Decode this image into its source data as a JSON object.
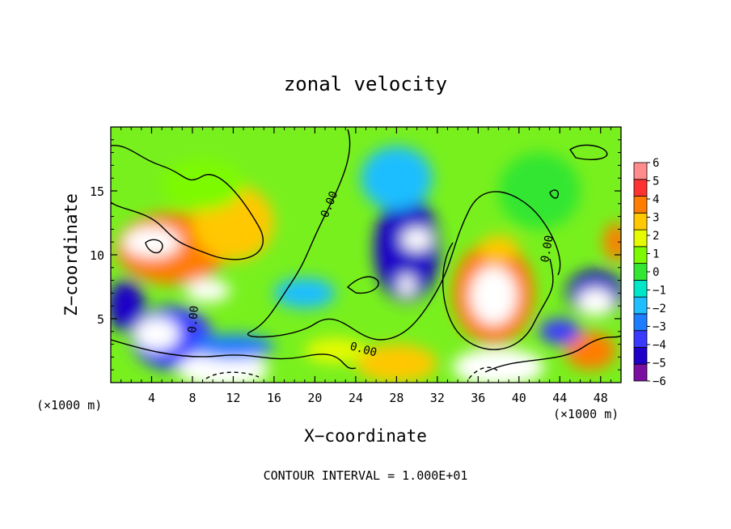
{
  "chart_data": {
    "type": "heatmap",
    "title": "zonal velocity",
    "xlabel": "X−coordinate",
    "ylabel": "Z−coordinate",
    "x_unit_left": "(×1000 m)",
    "x_unit_right": "(×1000 m)",
    "footer": "CONTOUR INTERVAL = 1.000E+01",
    "xlim": [
      0,
      50
    ],
    "ylim": [
      0,
      20
    ],
    "x_ticks": [
      4,
      8,
      12,
      16,
      20,
      24,
      28,
      32,
      36,
      40,
      44,
      48
    ],
    "y_ticks": [
      5,
      10,
      15
    ],
    "x_tick_labels": [
      "4",
      "8",
      "12",
      "16",
      "20",
      "24",
      "28",
      "32",
      "36",
      "40",
      "44",
      "48"
    ],
    "y_tick_labels": [
      "5",
      "10",
      "15"
    ],
    "contour_labels": [
      "0.00",
      "0.00",
      "0.00",
      "0.00"
    ],
    "colorbar": {
      "levels": [
        -6,
        -5,
        -4,
        -3,
        -2,
        -1,
        0,
        1,
        2,
        3,
        4,
        5,
        6
      ],
      "labels": [
        "6",
        "5",
        "4",
        "3",
        "2",
        "1",
        "0",
        "−1",
        "−2",
        "−3",
        "−4",
        "−5",
        "−6"
      ],
      "colors": [
        "#7a0fa0",
        "#1e00c8",
        "#3a3aff",
        "#1e7dff",
        "#1ebeff",
        "#00e6c8",
        "#32e632",
        "#7dfa00",
        "#e6fa00",
        "#ffc800",
        "#ff7d00",
        "#ff3232",
        "#ff8c8c"
      ]
    },
    "field_blobs": [
      {
        "x": 6,
        "z": 10.5,
        "rx": 5.5,
        "rz": 2.8,
        "value": 4.6
      },
      {
        "x": 4,
        "z": 11.0,
        "rx": 2.8,
        "rz": 1.2,
        "value": 6.5
      },
      {
        "x": 9.5,
        "z": 7.2,
        "rx": 2.2,
        "rz": 0.9,
        "value": 6.5
      },
      {
        "x": 12,
        "z": 12.5,
        "rx": 4.0,
        "rz": 3.0,
        "value": 3.5
      },
      {
        "x": 9,
        "z": 15.5,
        "rx": 4.0,
        "rz": 2.0,
        "value": 1.5
      },
      {
        "x": 6,
        "z": 3.5,
        "rx": 4.0,
        "rz": 2.5,
        "value": -4.0
      },
      {
        "x": 4.5,
        "z": 3.8,
        "rx": 2.2,
        "rz": 1.3,
        "value": 6.5
      },
      {
        "x": 1.5,
        "z": 6.0,
        "rx": 1.8,
        "rz": 2.0,
        "value": -4.5
      },
      {
        "x": 11,
        "z": 1.0,
        "rx": 4.5,
        "rz": 1.4,
        "value": 6.5
      },
      {
        "x": 12,
        "z": 2.8,
        "rx": 4.0,
        "rz": 1.0,
        "value": -3.0
      },
      {
        "x": 29,
        "z": 10.5,
        "rx": 3.2,
        "rz": 4.2,
        "value": -4.8
      },
      {
        "x": 30,
        "z": 11.2,
        "rx": 1.5,
        "rz": 0.9,
        "value": 6.5
      },
      {
        "x": 29,
        "z": 7.6,
        "rx": 0.8,
        "rz": 0.9,
        "value": 6.5
      },
      {
        "x": 28,
        "z": 16.0,
        "rx": 3.5,
        "rz": 2.5,
        "value": -1.5
      },
      {
        "x": 37.5,
        "z": 7.0,
        "rx": 4.0,
        "rz": 4.0,
        "value": 4.6
      },
      {
        "x": 37.5,
        "z": 6.8,
        "rx": 2.3,
        "rz": 2.3,
        "value": 6.5
      },
      {
        "x": 38,
        "z": 10.5,
        "rx": 2.0,
        "rz": 1.0,
        "value": 3.5
      },
      {
        "x": 38,
        "z": 1.2,
        "rx": 4.5,
        "rz": 1.5,
        "value": 6.5
      },
      {
        "x": 28,
        "z": 1.5,
        "rx": 4.0,
        "rz": 1.5,
        "value": 3.8
      },
      {
        "x": 47.5,
        "z": 7.0,
        "rx": 2.8,
        "rz": 1.8,
        "value": -4.8
      },
      {
        "x": 47.5,
        "z": 6.3,
        "rx": 1.8,
        "rz": 1.1,
        "value": 6.5
      },
      {
        "x": 47,
        "z": 2.5,
        "rx": 2.5,
        "rz": 1.5,
        "value": 4.0
      },
      {
        "x": 44,
        "z": 4.0,
        "rx": 2.0,
        "rz": 1.0,
        "value": -4.0
      },
      {
        "x": 49.5,
        "z": 11.0,
        "rx": 1.2,
        "rz": 1.5,
        "value": 4.0
      },
      {
        "x": 19,
        "z": 7.0,
        "rx": 3.0,
        "rz": 1.2,
        "value": -1.5
      },
      {
        "x": 22,
        "z": 2.5,
        "rx": 3.0,
        "rz": 1.0,
        "value": 2.0
      },
      {
        "x": 42,
        "z": 15.0,
        "rx": 4.0,
        "rz": 3.0,
        "value": 0.3
      }
    ]
  }
}
